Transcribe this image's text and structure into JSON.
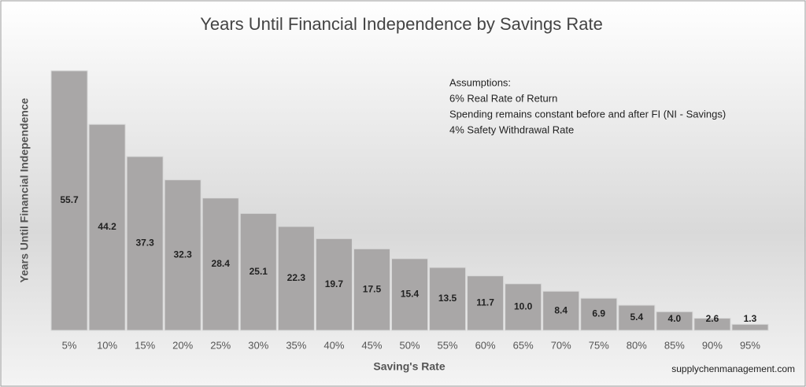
{
  "chart_data": {
    "type": "bar",
    "title": "Years Until Financial Independence by Savings Rate",
    "x_label": "Saving's Rate",
    "y_label": "Years Until Financial Independence",
    "categories": [
      "5%",
      "10%",
      "15%",
      "20%",
      "25%",
      "30%",
      "35%",
      "40%",
      "45%",
      "50%",
      "55%",
      "60%",
      "65%",
      "70%",
      "75%",
      "80%",
      "85%",
      "90%",
      "95%"
    ],
    "values": [
      55.7,
      44.2,
      37.3,
      32.3,
      28.4,
      25.1,
      22.3,
      19.7,
      17.5,
      15.4,
      13.5,
      11.7,
      10,
      8.4,
      6.9,
      5.4,
      4,
      2.6,
      1.3
    ],
    "value_labels": [
      "55.7",
      "44.2",
      "37.3",
      "32.3",
      "28.4",
      "25.1",
      "22.3",
      "19.7",
      "17.5",
      "15.4",
      "13.5",
      "11.7",
      "10.0",
      "8.4",
      "6.9",
      "5.4",
      "4.0",
      "2.6",
      "1.3"
    ],
    "color": "#a9a7a7",
    "annotations": [
      "Assumptions:",
      "6% Real Rate of Return",
      "Spending remains constant before and after FI (NI - Savings)",
      "4% Safety Withdrawal Rate"
    ],
    "source": "supplychenmanagement.com"
  }
}
